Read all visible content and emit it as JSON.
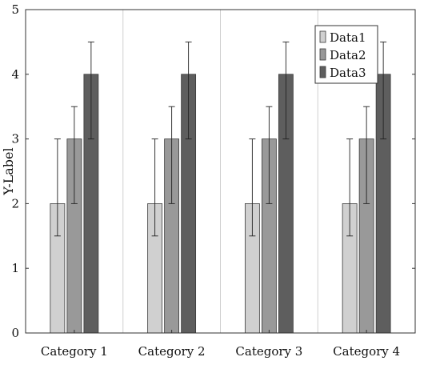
{
  "chart_data": {
    "type": "bar",
    "title": "",
    "xlabel": "",
    "ylabel": "Y-Label",
    "ylim": [
      0,
      5
    ],
    "yticks": [
      "0",
      "1",
      "2",
      "3",
      "4",
      "5"
    ],
    "categories": [
      "Category 1",
      "Category 2",
      "Category 3",
      "Category 4"
    ],
    "grid": "vertical lines between categories",
    "legend_position": "top-right",
    "series": [
      {
        "name": "Data1",
        "values": [
          2,
          2,
          2,
          2
        ],
        "error_low": [
          1.5,
          1.5,
          1.5,
          1.5
        ],
        "error_high": [
          3,
          3,
          3,
          3
        ],
        "color": "#d0d0d0"
      },
      {
        "name": "Data2",
        "values": [
          3,
          3,
          3,
          3
        ],
        "error_low": [
          2,
          2,
          2,
          2
        ],
        "error_high": [
          3.5,
          3.5,
          3.5,
          3.5
        ],
        "color": "#999999"
      },
      {
        "name": "Data3",
        "values": [
          4,
          4,
          4,
          4
        ],
        "error_low": [
          3,
          3,
          3,
          3
        ],
        "error_high": [
          4.5,
          4.5,
          4.5,
          4.5
        ],
        "color": "#5e5e5e"
      }
    ]
  }
}
